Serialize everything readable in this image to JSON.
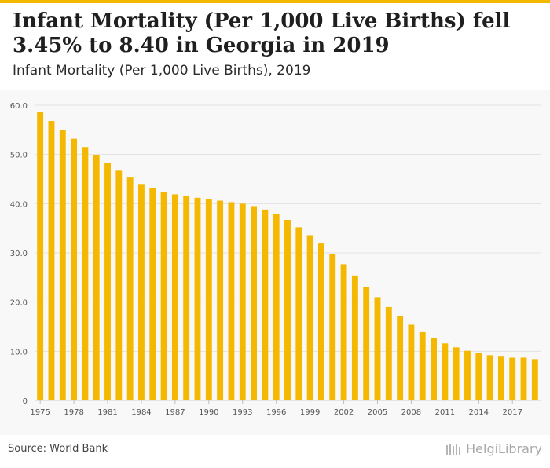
{
  "header": {
    "title": "Infant Mortality (Per 1,000 Live Births) fell 3.45% to 8.40 in Georgia in 2019",
    "subtitle": "Infant Mortality (Per 1,000 Live Births), 2019"
  },
  "footer": {
    "source": "Source: World Bank",
    "logo_text": "HelgiLibrary"
  },
  "colors": {
    "accent": "#f5b800",
    "bar": "#f5b800",
    "grid": "#e2e2e2",
    "axis_text": "#555555"
  },
  "chart_data": {
    "type": "bar",
    "title": "Infant Mortality (Per 1,000 Live Births), 2019",
    "xlabel": "",
    "ylabel": "",
    "categories": [
      1975,
      1976,
      1977,
      1978,
      1979,
      1980,
      1981,
      1982,
      1983,
      1984,
      1985,
      1986,
      1987,
      1988,
      1989,
      1990,
      1991,
      1992,
      1993,
      1994,
      1995,
      1996,
      1997,
      1998,
      1999,
      2000,
      2001,
      2002,
      2003,
      2004,
      2005,
      2006,
      2007,
      2008,
      2009,
      2010,
      2011,
      2012,
      2013,
      2014,
      2015,
      2016,
      2017,
      2018,
      2019
    ],
    "values": [
      58.7,
      56.8,
      55.0,
      53.2,
      51.5,
      49.8,
      48.2,
      46.7,
      45.3,
      44.0,
      43.1,
      42.4,
      41.9,
      41.5,
      41.2,
      40.9,
      40.6,
      40.3,
      40.0,
      39.5,
      38.8,
      37.9,
      36.7,
      35.2,
      33.6,
      31.9,
      29.8,
      27.7,
      25.4,
      23.1,
      21.0,
      19.0,
      17.1,
      15.4,
      13.9,
      12.7,
      11.6,
      10.8,
      10.1,
      9.6,
      9.2,
      8.9,
      8.7,
      8.7,
      8.4
    ],
    "x_tick_labels": [
      "1975",
      "1978",
      "1981",
      "1984",
      "1987",
      "1990",
      "1993",
      "1996",
      "1999",
      "2002",
      "2005",
      "2008",
      "2011",
      "2014",
      "2017"
    ],
    "y_ticks": [
      0,
      10,
      20,
      30,
      40,
      50,
      60
    ],
    "y_tick_labels": [
      "0",
      "10.0",
      "20.0",
      "30.0",
      "40.0",
      "50.0",
      "60.0"
    ],
    "ylim": [
      0,
      60
    ],
    "grid": true,
    "legend": "none"
  }
}
